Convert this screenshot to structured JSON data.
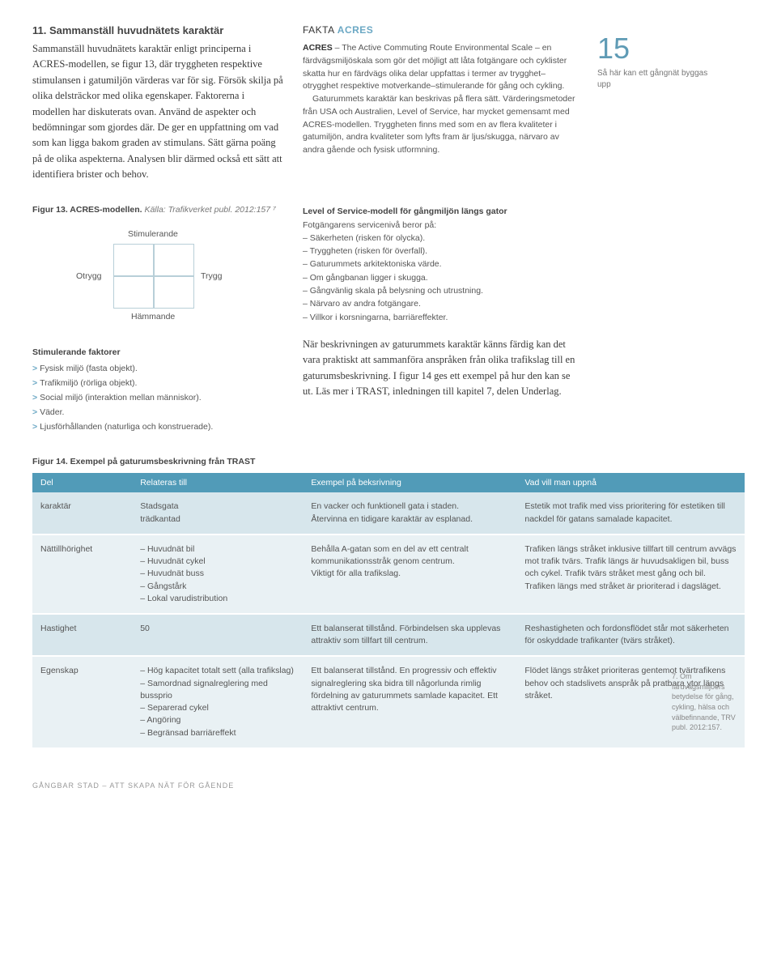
{
  "section": {
    "title": "11. Sammanställ huvudnätets karaktär",
    "body": "Sammanställ huvudnätets karaktär enligt principerna i ACRES-modellen, se figur 13, där tryggheten respektive stimulansen i gatumiljön värderas var för sig. Försök skilja på olika delsträckor med olika egenskaper. Faktorerna i modellen har diskuterats ovan. Använd de aspekter och bedömningar som gjordes där. De ger en uppfattning om vad som kan ligga bakom graden av stimulans. Sätt gärna poäng på de olika aspekterna. Analysen blir därmed också ett sätt att identifiera brister och behov."
  },
  "fakta": {
    "title_prefix": "FAKTA ",
    "title_accent": "ACRES",
    "para1_lead": "ACRES",
    "para1": " – The Active Commuting Route Environmental Scale – en färdvägsmiljöskala som gör det möjligt att låta fotgängare och cyklister skatta hur en färdvägs olika delar uppfattas i termer av trygghet–otrygghet respektive motverkande–stimulerande för gång och cykling.",
    "para2": "Gaturummets karaktär kan beskrivas på flera sätt. Värderingsmetoder från USA och Australien, Level of Service, har mycket gemensamt med ACRES-modellen. Tryggheten finns med som en av flera kvaliteter i gatumiljön, andra kvaliteter som lyfts fram är ljus/skugga, närvaro av andra gående och fysisk utformning."
  },
  "sidebar": {
    "page_num": "15",
    "caption": "Så här kan ett gångnät byggas upp"
  },
  "figure13": {
    "caption_bold": "Figur 13. ACRES-modellen.",
    "caption_ital": " Källa: Trafikverket publ. 2012:157 ⁷",
    "top": "Stimulerande",
    "bottom": "Hämmande",
    "left": "Otrygg",
    "right": "Trygg",
    "grid_border": "#b8cfd8"
  },
  "stim": {
    "header": "Stimulerande faktorer",
    "items": [
      "Fysisk miljö (fasta objekt).",
      "Trafikmiljö (rörliga objekt).",
      "Social miljö (interaktion mellan människor).",
      "Väder.",
      "Ljusförhållanden (naturliga och konstruerade)."
    ]
  },
  "los": {
    "header": "Level of Service-modell för gångmiljön längs gator",
    "intro": "Fotgängarens servicenivå beror på:",
    "items": [
      "– Säkerheten (risken för olycka).",
      "– Tryggheten (risken för överfall).",
      "– Gaturummets arkitektoniska värde.",
      "– Om gångbanan ligger i skugga.",
      "– Gångvänlig skala på belysning och utrustning.",
      "– Närvaro av andra fotgängare.",
      "– Villkor i korsningarna, barriäreffekter."
    ]
  },
  "desc_para": "När beskrivningen av gaturummets karaktär känns färdig kan det vara praktiskt att sammanföra anspråken från olika trafikslag till en gaturumsbeskrivning. I figur 14 ges ett exempel på hur den kan se ut. Läs mer i TRAST, inledningen till kapitel 7, delen Underlag.",
  "figure14": {
    "caption": "Figur 14. Exempel på gaturumsbeskrivning från TRAST",
    "columns": [
      "Del",
      "Relateras till",
      "Exempel på beksrivning",
      "Vad vill man uppnå"
    ],
    "col_widths": [
      "14%",
      "24%",
      "30%",
      "32%"
    ],
    "header_bg": "#519bb8",
    "header_fg": "#ffffff",
    "row_odd_bg": "#d7e6ec",
    "row_even_bg": "#e9f1f4",
    "rows": [
      [
        "karaktär",
        "Stadsgata\nträdkantad",
        "En vacker och funktionell gata i staden.\nÅtervinna en tidigare karaktär av esplanad.",
        "Estetik mot trafik med viss prioritering för estetiken till nackdel för gatans samalade kapacitet."
      ],
      [
        "Nättillhörighet",
        "– Huvudnät bil\n– Huvudnät cykel\n– Huvudnät buss\n– Gångstårk\n– Lokal varudistribution",
        "Behålla A-gatan som en del av ett centralt kommunikationsstråk genom centrum.\nViktigt för alla trafikslag.",
        "Trafiken längs stråket inklusive tillfart till centrum avvägs mot trafik tvärs. Trafik längs är huvudsakligen bil, buss och cykel. Trafik tvärs stråket mest gång och bil. Trafiken längs med stråket är prioriterad i dagsläget."
      ],
      [
        "Hastighet",
        "50",
        "Ett balanserat tillstånd. Förbindelsen ska upplevas attraktiv som tillfart till centrum.",
        "Reshastigheten och fordonsflödet står mot säkerheten för oskyddade trafikanter (tvärs stråket)."
      ],
      [
        "Egenskap",
        "– Hög kapacitet totalt sett (alla trafikslag)\n– Samordnad signalreglering med bussprio\n– Separerad cykel\n– Angöring\n– Begränsad barriäreffekt",
        "Ett balanserat tillstånd. En progressiv och effektiv signalreglering ska bidra till någorlunda rimlig fördelning av gaturummets samlade kapacitet. Ett attraktivt centrum.",
        "Flödet längs stråket prioriteras gentemot tvärtrafikens behov och stadslivets anspråk på pratbara ytor längs stråket."
      ]
    ]
  },
  "footnote": "7. Om färdvägsmiljöers betydelse för gång, cykling, hälsa och välbefinnande, TRV publ. 2012:157.",
  "footer": "GÅNGBAR STAD – ATT SKAPA NÄT FÖR GÅENDE"
}
